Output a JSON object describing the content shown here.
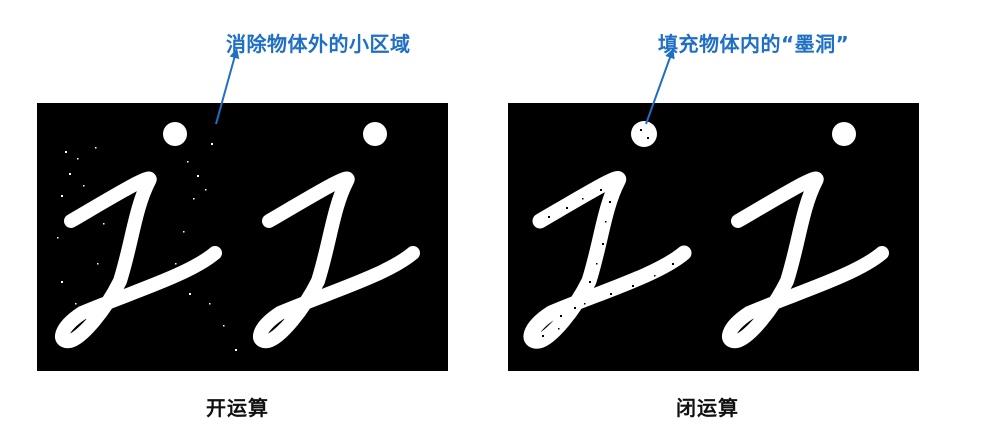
{
  "annotations": {
    "left": "消除物体外的小区域",
    "right": "填充物体内的“墨洞”"
  },
  "captions": {
    "left": "开运算",
    "right": "闭运算"
  },
  "colors": {
    "annotation": "#1f6fc4",
    "panel_bg": "#000000",
    "stroke": "#ffffff"
  }
}
